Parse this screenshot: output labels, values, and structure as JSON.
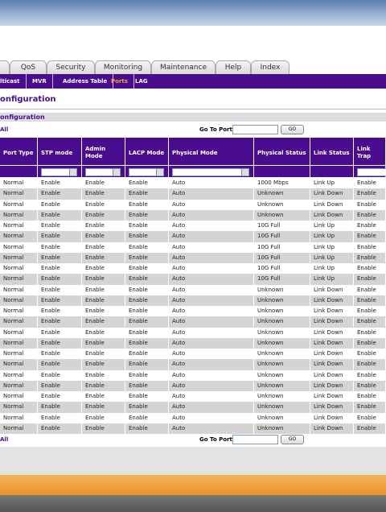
{
  "tabs": [
    "QoS",
    "Security",
    "Monitoring",
    "Maintenance",
    "Help",
    "Index"
  ],
  "subnav": [
    "lticast",
    "MVR",
    "Address Table",
    "Ports",
    "LAG"
  ],
  "page_title": "onfiguration",
  "section_title": "onfiguration",
  "top_controls": {
    "all": "All",
    "go_to_port": "Go To Port",
    "go": "GO"
  },
  "bottom_controls": {
    "all": "All",
    "go_to_port": "Go To Port",
    "go": "GO"
  },
  "table": {
    "headers": [
      "Port Type",
      "STP mode",
      "Admin Mode",
      "LACP Mode",
      "Physical Mode",
      "Physical Status",
      "Link Status",
      "Link Trap"
    ],
    "rows": [
      [
        "Normal",
        "Enable",
        "Enable",
        "Enable",
        "Auto",
        "1000 Mbps",
        "Link Up",
        "Enable"
      ],
      [
        "Normal",
        "Enable",
        "Enable",
        "Enable",
        "Auto",
        "Unknown",
        "Link Down",
        "Enable"
      ],
      [
        "Normal",
        "Enable",
        "Enable",
        "Enable",
        "Auto",
        "Unknown",
        "Link Down",
        "Enable"
      ],
      [
        "Normal",
        "Enable",
        "Enable",
        "Enable",
        "Auto",
        "Unknown",
        "Link Down",
        "Enable"
      ],
      [
        "Normal",
        "Enable",
        "Enable",
        "Enable",
        "Auto",
        "10G Full",
        "Link Up",
        "Enable"
      ],
      [
        "Normal",
        "Enable",
        "Enable",
        "Enable",
        "Auto",
        "10G Full",
        "Link Up",
        "Enable"
      ],
      [
        "Normal",
        "Enable",
        "Enable",
        "Enable",
        "Auto",
        "10G Full",
        "Link Up",
        "Enable"
      ],
      [
        "Normal",
        "Enable",
        "Enable",
        "Enable",
        "Auto",
        "10G Full",
        "Link Up",
        "Enable"
      ],
      [
        "Normal",
        "Enable",
        "Enable",
        "Enable",
        "Auto",
        "10G Full",
        "Link Up",
        "Enable"
      ],
      [
        "Normal",
        "Enable",
        "Enable",
        "Enable",
        "Auto",
        "10G Full",
        "Link Up",
        "Enable"
      ],
      [
        "Normal",
        "Enable",
        "Enable",
        "Enable",
        "Auto",
        "Unknown",
        "Link Down",
        "Enable"
      ],
      [
        "Normal",
        "Enable",
        "Enable",
        "Enable",
        "Auto",
        "Unknown",
        "Link Down",
        "Enable"
      ],
      [
        "Normal",
        "Enable",
        "Enable",
        "Enable",
        "Auto",
        "Unknown",
        "Link Down",
        "Enable"
      ],
      [
        "Normal",
        "Enable",
        "Enable",
        "Enable",
        "Auto",
        "Unknown",
        "Link Down",
        "Enable"
      ],
      [
        "Normal",
        "Enable",
        "Enable",
        "Enable",
        "Auto",
        "Unknown",
        "Link Down",
        "Enable"
      ],
      [
        "Normal",
        "Enable",
        "Enable",
        "Enable",
        "Auto",
        "Unknown",
        "Link Down",
        "Enable"
      ],
      [
        "Normal",
        "Enable",
        "Enable",
        "Enable",
        "Auto",
        "Unknown",
        "Link Down",
        "Enable"
      ],
      [
        "Normal",
        "Enable",
        "Enable",
        "Enable",
        "Auto",
        "Unknown",
        "Link Down",
        "Enable"
      ],
      [
        "Normal",
        "Enable",
        "Enable",
        "Enable",
        "Auto",
        "Unknown",
        "Link Down",
        "Enable"
      ],
      [
        "Normal",
        "Enable",
        "Enable",
        "Enable",
        "Auto",
        "Unknown",
        "Link Down",
        "Enable"
      ],
      [
        "Normal",
        "Enable",
        "Enable",
        "Enable",
        "Auto",
        "Unknown",
        "Link Down",
        "Enable"
      ],
      [
        "Normal",
        "Enable",
        "Enable",
        "Enable",
        "Auto",
        "Unknown",
        "Link Down",
        "Enable"
      ],
      [
        "Normal",
        "Enable",
        "Enable",
        "Enable",
        "Auto",
        "Unknown",
        "Link Down",
        "Enable"
      ],
      [
        "Normal",
        "Enable",
        "Enable",
        "Enable",
        "Auto",
        "Unknown",
        "Link Down",
        "Enable"
      ]
    ]
  }
}
